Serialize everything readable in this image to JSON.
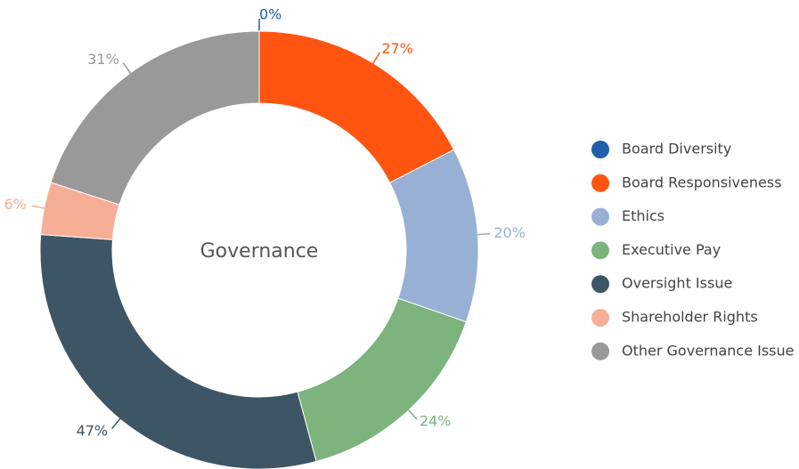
{
  "chart_data": {
    "type": "donut",
    "title": "Governance",
    "categories": [
      "Board Diversity",
      "Board Responsiveness",
      "Ethics",
      "Executive Pay",
      "Oversight Issue",
      "Shareholder Rights",
      "Other Governance Issue"
    ],
    "values": [
      0,
      27,
      20,
      24,
      47,
      6,
      31
    ],
    "value_labels": [
      "0%",
      "27%",
      "20%",
      "24%",
      "47%",
      "6%",
      "31%"
    ],
    "colors": [
      "#1f5fa8",
      "#ff5511",
      "#98b0d4",
      "#7db37d",
      "#3e5566",
      "#f7ae96",
      "#999999"
    ],
    "legend": "right"
  }
}
